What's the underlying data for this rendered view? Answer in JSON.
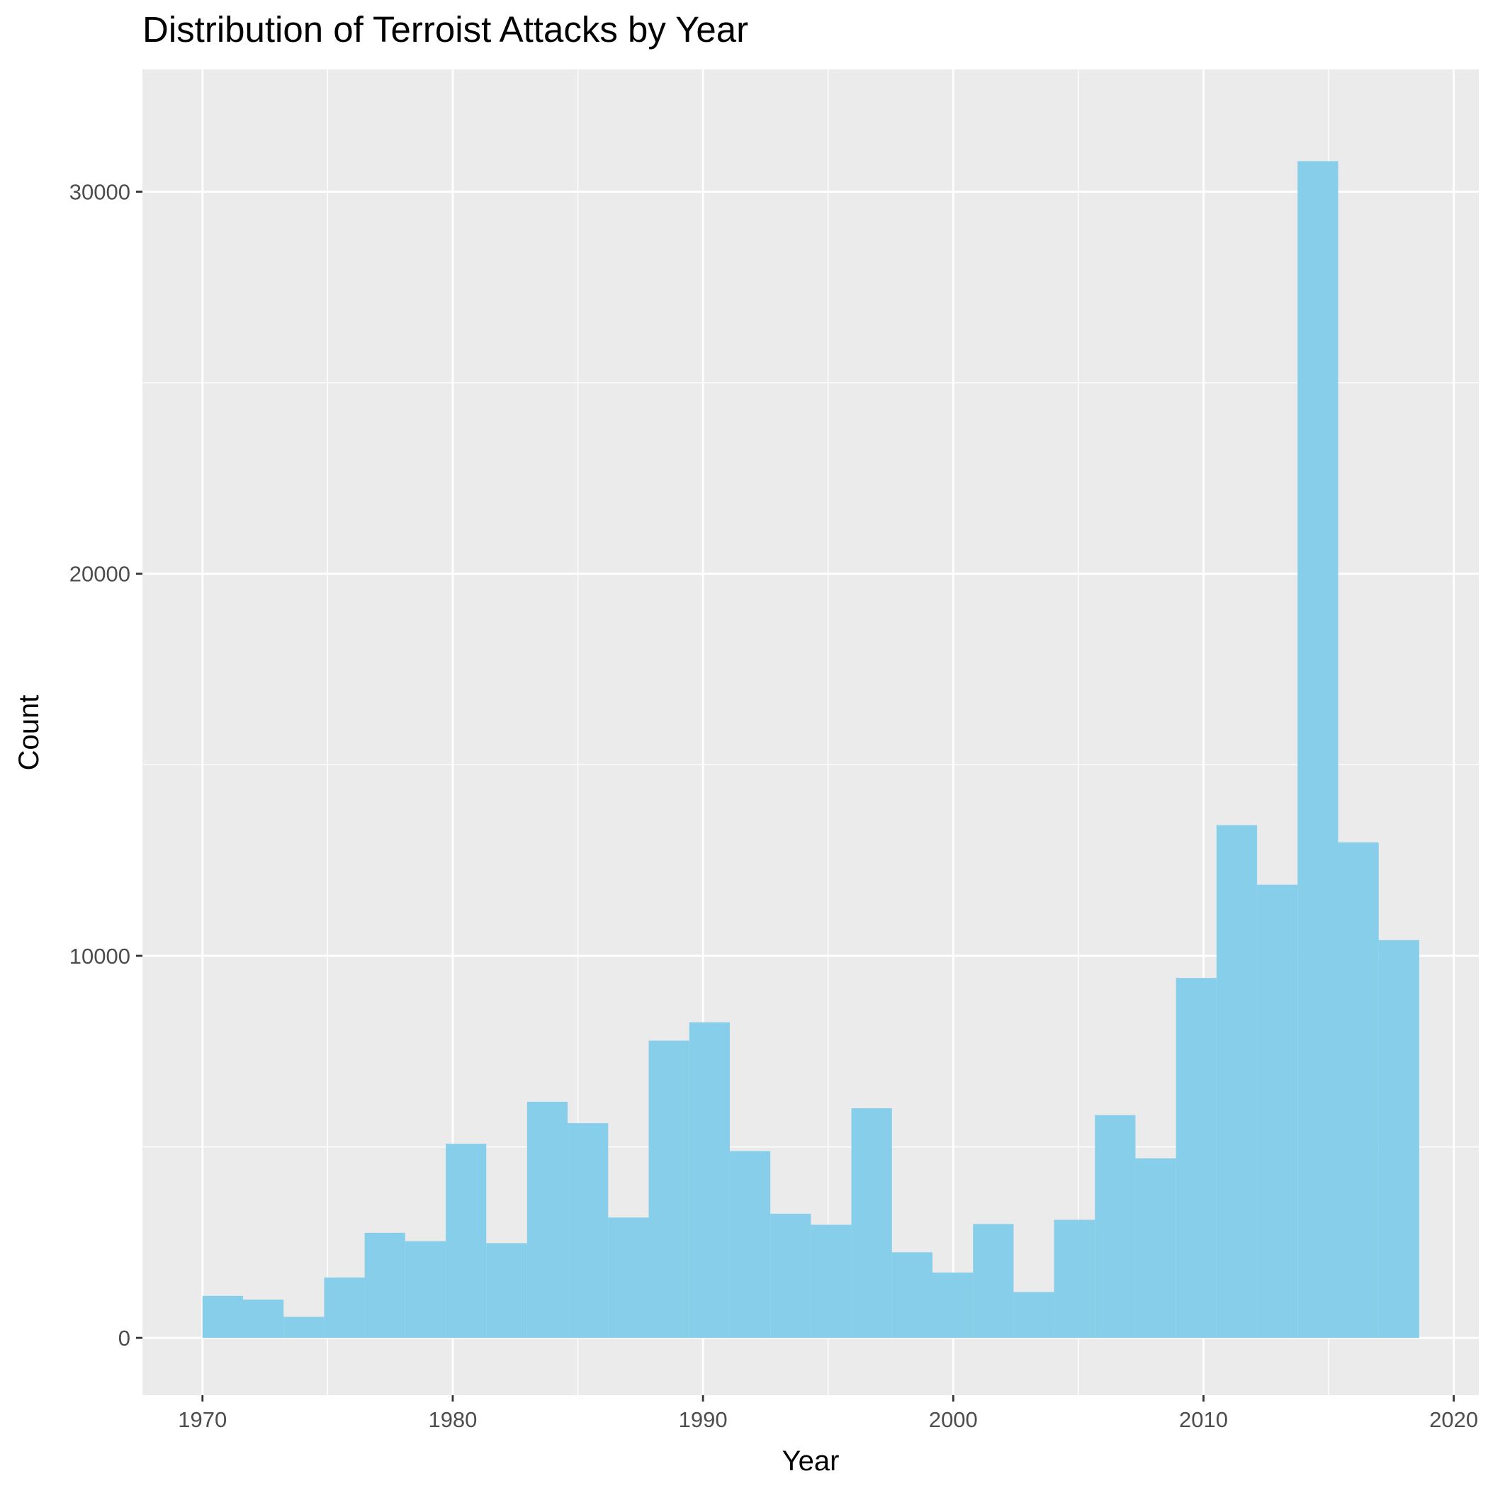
{
  "chart_data": {
    "type": "bar",
    "title": "Distribution of Terroist Attacks by Year",
    "xlabel": "Year",
    "ylabel": "Count",
    "xlim": [
      1967.6,
      2021.0
    ],
    "ylim": [
      -1500,
      33200
    ],
    "x_ticks": [
      1970,
      1980,
      1990,
      2000,
      2010,
      2020
    ],
    "y_ticks": [
      0,
      10000,
      20000,
      30000
    ],
    "grid": true,
    "bar_color": "#87CEEB",
    "panel_color": "#EBEBEB",
    "grid_color": "#FFFFFF",
    "bins": [
      {
        "x0": 1970.0,
        "x1": 1971.62,
        "count": 1100
      },
      {
        "x0": 1971.62,
        "x1": 1973.24,
        "count": 1000
      },
      {
        "x0": 1973.24,
        "x1": 1974.86,
        "count": 550
      },
      {
        "x0": 1974.86,
        "x1": 1976.48,
        "count": 1580
      },
      {
        "x0": 1976.48,
        "x1": 1978.1,
        "count": 2750
      },
      {
        "x0": 1978.1,
        "x1": 1979.72,
        "count": 2530
      },
      {
        "x0": 1979.72,
        "x1": 1981.34,
        "count": 5080
      },
      {
        "x0": 1981.34,
        "x1": 1982.97,
        "count": 2480
      },
      {
        "x0": 1982.97,
        "x1": 1984.59,
        "count": 6180
      },
      {
        "x0": 1984.59,
        "x1": 1986.21,
        "count": 5620
      },
      {
        "x0": 1986.21,
        "x1": 1987.83,
        "count": 3150
      },
      {
        "x0": 1987.83,
        "x1": 1989.45,
        "count": 7780
      },
      {
        "x0": 1989.45,
        "x1": 1991.07,
        "count": 8260
      },
      {
        "x0": 1991.07,
        "x1": 1992.69,
        "count": 4890
      },
      {
        "x0": 1992.69,
        "x1": 1994.31,
        "count": 3250
      },
      {
        "x0": 1994.31,
        "x1": 1995.93,
        "count": 2960
      },
      {
        "x0": 1995.93,
        "x1": 1997.55,
        "count": 6010
      },
      {
        "x0": 1997.55,
        "x1": 1999.17,
        "count": 2240
      },
      {
        "x0": 1999.17,
        "x1": 2000.79,
        "count": 1710
      },
      {
        "x0": 2000.79,
        "x1": 2002.41,
        "count": 2980
      },
      {
        "x0": 2002.41,
        "x1": 2004.03,
        "count": 1200
      },
      {
        "x0": 2004.03,
        "x1": 2005.66,
        "count": 3090
      },
      {
        "x0": 2005.66,
        "x1": 2007.28,
        "count": 5830
      },
      {
        "x0": 2007.28,
        "x1": 2008.9,
        "count": 4700
      },
      {
        "x0": 2008.9,
        "x1": 2010.52,
        "count": 9420
      },
      {
        "x0": 2010.52,
        "x1": 2012.14,
        "count": 13420
      },
      {
        "x0": 2012.14,
        "x1": 2013.76,
        "count": 11860
      },
      {
        "x0": 2013.76,
        "x1": 2015.38,
        "count": 30800
      },
      {
        "x0": 2015.38,
        "x1": 2017.0,
        "count": 12970
      },
      {
        "x0": 2017.0,
        "x1": 2018.62,
        "count": 10410
      }
    ]
  }
}
